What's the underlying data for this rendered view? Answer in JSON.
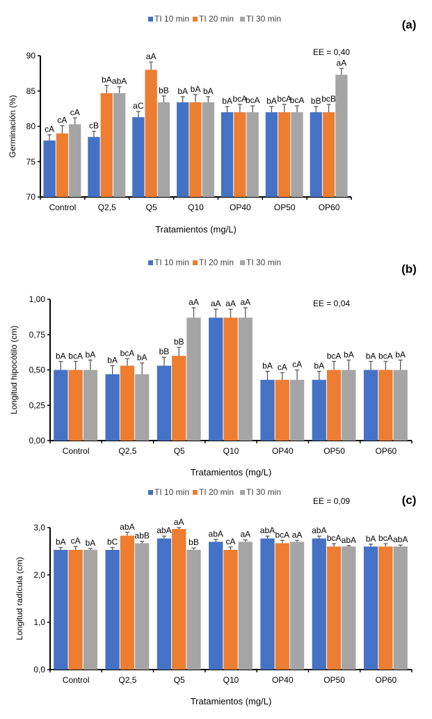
{
  "colors": {
    "s10": "#4472C4",
    "s20": "#ED7D31",
    "s30": "#A5A5A5"
  },
  "chart_data": [
    {
      "type": "bar",
      "panel_label": "(a)",
      "title": "",
      "xlabel": "Tratamientos (mg/L)",
      "ylabel": "Germinación (%)",
      "ylim": [
        70,
        90
      ],
      "yticks": [
        70,
        75,
        80,
        85,
        90
      ],
      "ytick_labels": [
        "70",
        "75",
        "80",
        "85",
        "90"
      ],
      "annotation": "EE = 0,40",
      "legend_position": "top-center",
      "grid": false,
      "categories": [
        "Control",
        "Q2,5",
        "Q5",
        "Q10",
        "OP40",
        "OP50",
        "OP60"
      ],
      "series": [
        {
          "name": "TI 10 min",
          "values": [
            78.0,
            78.5,
            81.3,
            83.4,
            82.0,
            82.0,
            82.0
          ],
          "errors": [
            0.8,
            0.8,
            0.8,
            0.8,
            0.8,
            0.8,
            0.8
          ],
          "labels": [
            "cA",
            "cB",
            "aC",
            "bA",
            "bA",
            "bA",
            "bB"
          ]
        },
        {
          "name": "TI 20 min",
          "values": [
            79.0,
            84.7,
            88.0,
            83.4,
            82.0,
            82.0,
            82.0
          ],
          "errors": [
            1.1,
            1.1,
            1.1,
            1.1,
            1.1,
            1.1,
            1.1
          ],
          "labels": [
            "cA",
            "bA",
            "aA",
            "bA",
            "bcA",
            "bcA",
            "bcB"
          ]
        },
        {
          "name": "TI 30 min",
          "values": [
            80.3,
            84.7,
            83.4,
            83.4,
            82.0,
            82.0,
            87.3
          ],
          "errors": [
            0.9,
            0.9,
            0.9,
            0.8,
            0.9,
            0.9,
            0.9
          ],
          "labels": [
            "cA",
            "abA",
            "bB",
            "bA",
            "bcA",
            "bcA",
            "aA"
          ]
        }
      ]
    },
    {
      "type": "bar",
      "panel_label": "(b)",
      "title": "",
      "xlabel": "Tratamientos (mg/L)",
      "ylabel": "Longitud hipocótilo (cm)",
      "ylim": [
        0,
        1.0
      ],
      "yticks": [
        0,
        0.25,
        0.5,
        0.75,
        1.0
      ],
      "ytick_labels": [
        "0,00",
        "0,25",
        "0,50",
        "0,75",
        "1,00"
      ],
      "annotation": "EE = 0,04",
      "legend_position": "top-center",
      "grid": false,
      "categories": [
        "Control",
        "Q2,5",
        "Q5",
        "Q10",
        "OP40",
        "OP50",
        "OP60"
      ],
      "series": [
        {
          "name": "TI 10 min",
          "values": [
            0.5,
            0.47,
            0.53,
            0.87,
            0.43,
            0.43,
            0.5
          ],
          "errors": [
            0.06,
            0.06,
            0.06,
            0.06,
            0.06,
            0.06,
            0.06
          ],
          "labels": [
            "bA",
            "bA",
            "bB",
            "aA",
            "bA",
            "bA",
            "bA"
          ]
        },
        {
          "name": "TI 20 min",
          "values": [
            0.5,
            0.53,
            0.6,
            0.87,
            0.43,
            0.5,
            0.5
          ],
          "errors": [
            0.06,
            0.05,
            0.06,
            0.06,
            0.05,
            0.06,
            0.06
          ],
          "labels": [
            "bcA",
            "bcA",
            "bB",
            "aA",
            "cA",
            "bcA",
            "bcA"
          ]
        },
        {
          "name": "TI 30 min",
          "values": [
            0.5,
            0.47,
            0.87,
            0.87,
            0.43,
            0.5,
            0.5
          ],
          "errors": [
            0.07,
            0.08,
            0.07,
            0.07,
            0.07,
            0.07,
            0.07
          ],
          "labels": [
            "bA",
            "bA",
            "aA",
            "aA",
            "cA",
            "bA",
            "bA"
          ]
        }
      ]
    },
    {
      "type": "bar",
      "panel_label": "(c)",
      "title": "",
      "xlabel": "Tratamientos (mg/L)",
      "ylabel": "Longitud radícula (cm)",
      "ylim": [
        0,
        3.0
      ],
      "yticks": [
        0,
        1.0,
        2.0,
        3.0
      ],
      "ytick_labels": [
        "0,0",
        "1,0",
        "2,0",
        "3,0"
      ],
      "annotation": "EE = 0,09",
      "legend_position": "top-center",
      "grid": false,
      "categories": [
        "Control",
        "Q2,5",
        "Q5",
        "Q10",
        "OP40",
        "OP50",
        "OP60"
      ],
      "series": [
        {
          "name": "TI 10 min",
          "values": [
            2.53,
            2.53,
            2.77,
            2.7,
            2.77,
            2.77,
            2.6
          ],
          "errors": [
            0.05,
            0.05,
            0.05,
            0.05,
            0.05,
            0.05,
            0.05
          ],
          "labels": [
            "bA",
            "bC",
            "abA",
            "abA",
            "abA",
            "abA",
            "bA"
          ]
        },
        {
          "name": "TI 20 min",
          "values": [
            2.53,
            2.83,
            2.97,
            2.53,
            2.67,
            2.6,
            2.6
          ],
          "errors": [
            0.07,
            0.07,
            0.03,
            0.06,
            0.06,
            0.06,
            0.06
          ],
          "labels": [
            "cA",
            "abA",
            "aA",
            "cA",
            "bcA",
            "bcA",
            "bcA"
          ]
        },
        {
          "name": "TI 30 min",
          "values": [
            2.53,
            2.67,
            2.53,
            2.7,
            2.7,
            2.6,
            2.6
          ],
          "errors": [
            0.03,
            0.04,
            0.04,
            0.04,
            0.03,
            0.02,
            0.03
          ],
          "labels": [
            "bA",
            "abB",
            "bB",
            "aA",
            "aA",
            "abA",
            "abA"
          ]
        }
      ]
    }
  ]
}
